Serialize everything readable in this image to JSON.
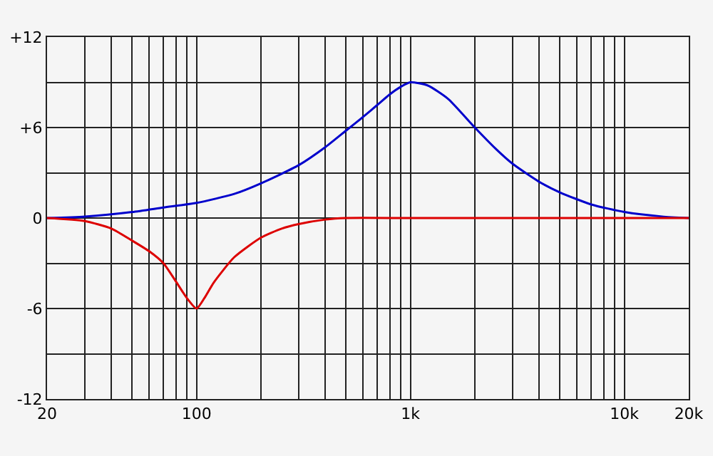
{
  "chart_data": {
    "type": "line",
    "log": "x",
    "grid": true,
    "marker": "none",
    "line_style": "solid",
    "xlim": [
      20,
      20000
    ],
    "xticks": [
      20,
      {
        "value": 30,
        "label": null
      },
      {
        "value": 40,
        "label": null
      },
      {
        "value": 50,
        "label": null
      },
      {
        "value": 60,
        "label": null
      },
      {
        "value": 70,
        "label": null
      },
      {
        "value": 80,
        "label": null
      },
      {
        "value": 90,
        "label": null
      },
      100,
      {
        "value": 200,
        "label": null
      },
      {
        "value": 300,
        "label": null
      },
      {
        "value": 400,
        "label": null
      },
      {
        "value": 500,
        "label": null
      },
      {
        "value": 600,
        "label": null
      },
      {
        "value": 700,
        "label": null
      },
      {
        "value": 800,
        "label": null
      },
      {
        "value": 900,
        "label": null
      },
      {
        "value": 1000,
        "label": "1k"
      },
      {
        "value": 2000,
        "label": null
      },
      {
        "value": 3000,
        "label": null
      },
      {
        "value": 4000,
        "label": null
      },
      {
        "value": 5000,
        "label": null
      },
      {
        "value": 6000,
        "label": null
      },
      {
        "value": 7000,
        "label": null
      },
      {
        "value": 8000,
        "label": null
      },
      {
        "value": 9000,
        "label": null
      },
      {
        "value": 10000,
        "label": "10k"
      },
      {
        "value": 20000,
        "label": "20k"
      }
    ],
    "ylim": [
      -12,
      12
    ],
    "yticks": [
      {
        "value": -12,
        "label": "-12"
      },
      {
        "value": -9,
        "label": null
      },
      {
        "value": -6,
        "label": "-6"
      },
      {
        "value": -3,
        "label": null
      },
      0,
      {
        "value": 3,
        "label": null
      },
      {
        "value": 6,
        "label": "+6"
      },
      {
        "value": 9,
        "label": null
      },
      {
        "value": 12,
        "label": "+12"
      }
    ],
    "series": [
      {
        "color": "#0000cc",
        "x": [
          20,
          30,
          50,
          70,
          100,
          150,
          200,
          300,
          400,
          500,
          600,
          700,
          800,
          900,
          1000,
          1200,
          1500,
          2000,
          2500,
          3000,
          4000,
          5000,
          7000,
          10000,
          15000,
          20000
        ],
        "values": [
          0,
          0.1,
          0.4,
          0.7,
          1.0,
          1.6,
          2.3,
          3.5,
          4.7,
          5.8,
          6.7,
          7.5,
          8.2,
          8.7,
          9.0,
          8.8,
          7.9,
          6.0,
          4.6,
          3.6,
          2.4,
          1.7,
          0.9,
          0.4,
          0.1,
          0
        ]
      },
      {
        "color": "#dd0000",
        "x": [
          20,
          30,
          40,
          50,
          60,
          70,
          80,
          90,
          100,
          110,
          120,
          150,
          200,
          250,
          300,
          400,
          500,
          1000,
          20000
        ],
        "values": [
          0,
          -0.2,
          -0.7,
          -1.5,
          -2.2,
          -3.0,
          -4.2,
          -5.3,
          -6.0,
          -5.2,
          -4.3,
          -2.6,
          -1.3,
          -0.7,
          -0.4,
          -0.1,
          0,
          0,
          0
        ]
      }
    ]
  }
}
